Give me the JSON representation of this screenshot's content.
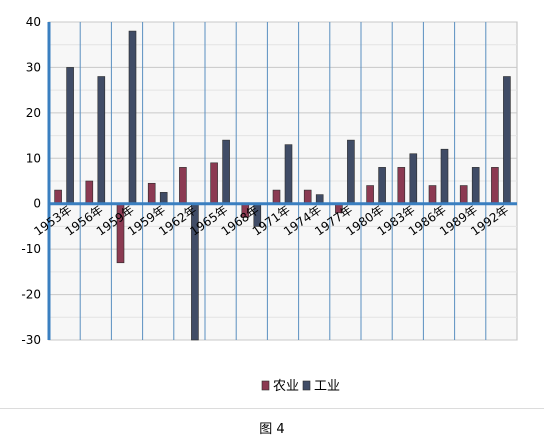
{
  "chart_data": {
    "type": "bar",
    "categories": [
      "1953年",
      "1956年",
      "1959年",
      "1959年",
      "1962年",
      "1965年",
      "1968年",
      "1971年",
      "1974年",
      "1977年",
      "1980年",
      "1983年",
      "1986年",
      "1989年",
      "1992年"
    ],
    "series": [
      {
        "name": "农业",
        "color": "#8b3a52",
        "values": [
          3,
          5,
          -13,
          4.5,
          8,
          9,
          -3,
          3,
          3,
          -2,
          4,
          8,
          4,
          4,
          8
        ]
      },
      {
        "name": "工业",
        "color": "#404c66",
        "values": [
          30,
          28,
          38,
          2.5,
          -30,
          14,
          -5,
          13,
          2,
          14,
          8,
          11,
          12,
          8,
          28
        ]
      }
    ],
    "ylim": [
      -30,
      40
    ],
    "yticks": [
      -30,
      -20,
      -10,
      0,
      10,
      20,
      30,
      40
    ],
    "grid": true,
    "legend_position": "bottom-center"
  },
  "caption": "图 4"
}
